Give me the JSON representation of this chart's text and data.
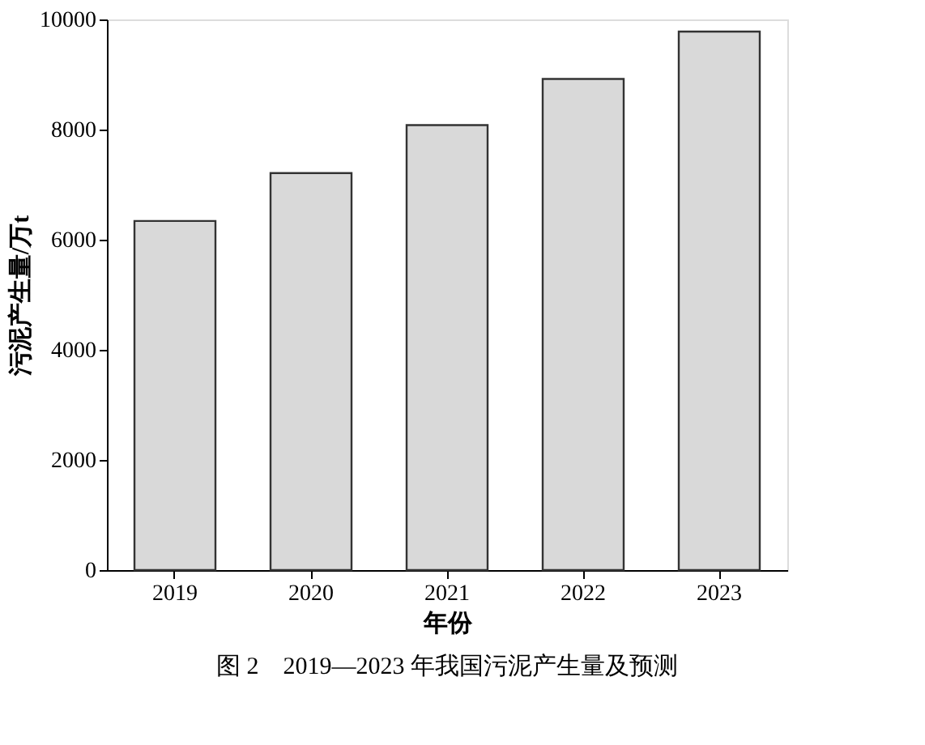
{
  "chart_data": {
    "type": "bar",
    "xlabel": "年份",
    "ylabel": "污泥产生量/万t",
    "categories": [
      "2019",
      "2020",
      "2021",
      "2022",
      "2023"
    ],
    "values": [
      6340,
      7210,
      8080,
      8920,
      9780
    ],
    "color": "#d9d9d9",
    "ylim": [
      0,
      10000
    ],
    "yticks": [
      0,
      2000,
      4000,
      6000,
      8000,
      10000
    ],
    "grid": false,
    "annotations": [
      "图 2　2019—2023 年我国污泥产生量及预测"
    ]
  }
}
